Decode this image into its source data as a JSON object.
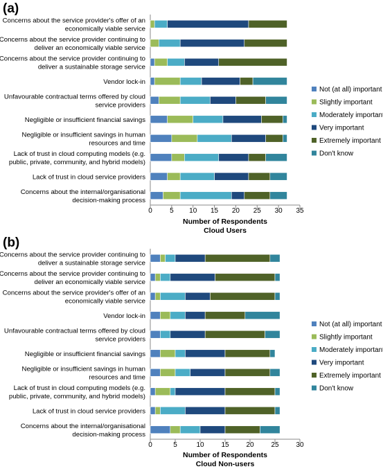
{
  "colors": [
    "#4F81BD",
    "#9BBB59",
    "#4BACC6",
    "#1F497D",
    "#4F6228",
    "#31859C"
  ],
  "chart_data": [
    {
      "type": "bar",
      "stacked": true,
      "orientation": "horizontal",
      "panel": "(a)",
      "xlabel": "Number of Respondents",
      "subtitle": "Cloud Users",
      "xlim": [
        0,
        35
      ],
      "xticks": [
        "0",
        "5",
        "10",
        "15",
        "20",
        "25",
        "30",
        "35"
      ],
      "legend_position": "right",
      "categories": [
        [
          "Concerns about the service provider's offer of an",
          "economically viable service"
        ],
        [
          "Concerns about the service provider continuing to",
          "deliver an economically viable service"
        ],
        [
          "Concerns about the service provider continuing to",
          "deliver a sustainable storage service"
        ],
        [
          "Vendor lock-in"
        ],
        [
          "Unfavourable contractual terms offered by cloud",
          "service providers"
        ],
        [
          "Negligible or insufficient financial savings"
        ],
        [
          "Negligible or insufficient savings in human",
          "resources and time"
        ],
        [
          "Lack of trust in cloud computing models (e.g.",
          "public, private, community, and hybrid models)"
        ],
        [
          "Lack of trust in cloud service providers"
        ],
        [
          "Concerns about the internal/organisational",
          "decision-making process"
        ]
      ],
      "series": [
        {
          "name": "Not (at all) important",
          "values": [
            0,
            0,
            1,
            1,
            2,
            4,
            5,
            5,
            4,
            3
          ]
        },
        {
          "name": "Slightly important",
          "values": [
            1,
            2,
            3,
            6,
            5,
            6,
            6,
            3,
            3,
            4
          ]
        },
        {
          "name": "Moderately important",
          "values": [
            3,
            5,
            4,
            5,
            7,
            7,
            8,
            8,
            8,
            12
          ]
        },
        {
          "name": "Very important",
          "values": [
            19,
            15,
            8,
            9,
            6,
            9,
            8,
            7,
            8,
            3
          ]
        },
        {
          "name": "Extremely important",
          "values": [
            9,
            10,
            16,
            3,
            7,
            5,
            4,
            4,
            5,
            6
          ]
        },
        {
          "name": "Don't know",
          "values": [
            0,
            0,
            0,
            8,
            5,
            1,
            1,
            5,
            4,
            4
          ]
        }
      ]
    },
    {
      "type": "bar",
      "stacked": true,
      "orientation": "horizontal",
      "panel": "(b)",
      "xlabel": "Number of Respondents",
      "subtitle": "Cloud Non-users",
      "xlim": [
        0,
        30
      ],
      "xticks": [
        "0",
        "5",
        "10",
        "15",
        "20",
        "25",
        "30"
      ],
      "legend_position": "right",
      "categories": [
        [
          "Concerns about the service provider continuing to",
          "deliver a sustainable storage service"
        ],
        [
          "Concerns about the service provider continuing to",
          "deliver an economically viable service"
        ],
        [
          "Concerns about the service provider's offer of an",
          "economically viable service"
        ],
        [
          "Vendor lock-in"
        ],
        [
          "Unfavourable contractual terms offered by cloud",
          "service providers"
        ],
        [
          "Negligible or insufficient financial savings"
        ],
        [
          "Negligible or insufficient savings in human",
          "resources and time"
        ],
        [
          "Lack of trust in cloud computing models (e.g.",
          "public, private, community, and hybrid models)"
        ],
        [
          "Lack of trust in cloud service providers"
        ],
        [
          "Concerns about the internal/organisational",
          "decision-making process"
        ]
      ],
      "series": [
        {
          "name": "Not (at all) important",
          "values": [
            2,
            1,
            1,
            2,
            2,
            2,
            2,
            1,
            1,
            4
          ]
        },
        {
          "name": "Slightly important",
          "values": [
            1,
            1,
            1,
            2,
            0,
            3,
            3,
            3,
            1,
            2
          ]
        },
        {
          "name": "Moderately important",
          "values": [
            2,
            2,
            5,
            3,
            2,
            2,
            3,
            1,
            5,
            4
          ]
        },
        {
          "name": "Very important",
          "values": [
            6,
            9,
            5,
            4,
            7,
            8,
            7,
            10,
            8,
            5
          ]
        },
        {
          "name": "Extremely important",
          "values": [
            13,
            12,
            13,
            8,
            12,
            9,
            9,
            10,
            10,
            7
          ]
        },
        {
          "name": "Don't know",
          "values": [
            2,
            1,
            1,
            7,
            3,
            1,
            2,
            1,
            1,
            4
          ]
        }
      ]
    }
  ]
}
